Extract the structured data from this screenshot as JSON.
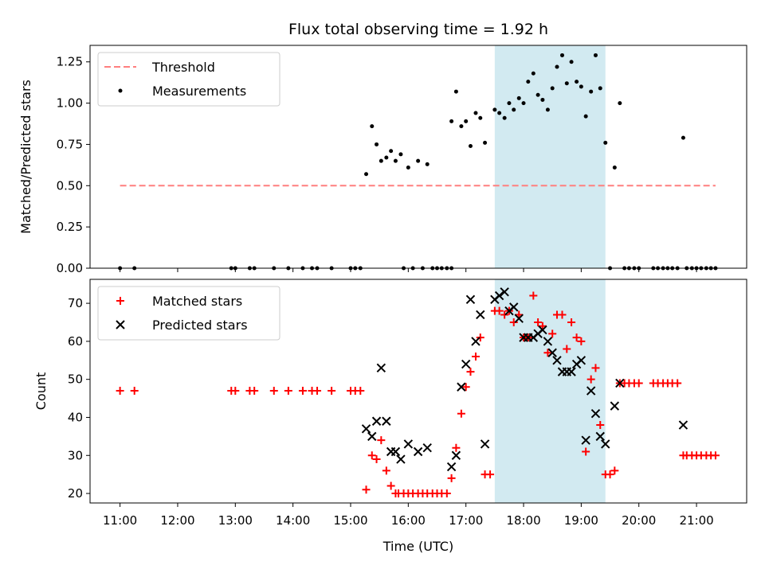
{
  "chart_data": [
    {
      "type": "scatter",
      "title": "Flux total observing time = 1.92 h",
      "ylabel": "Matched/Predicted stars",
      "xlabel": "",
      "x_unit": "hours UTC",
      "xlim": [
        10.48,
        21.87
      ],
      "ylim": [
        0.0,
        1.35
      ],
      "yticks": [
        0.0,
        0.25,
        0.5,
        0.75,
        1.0,
        1.25
      ],
      "ytick_labels": [
        "0.00",
        "0.25",
        "0.50",
        "0.75",
        "1.00",
        "1.25"
      ],
      "highlight_span": {
        "x": [
          17.5,
          19.42
        ],
        "color": "#add8e6"
      },
      "legend_position": "top-left",
      "legend": [
        {
          "label": "Threshold",
          "style": "dashed-line",
          "color": "#ff7f7f"
        },
        {
          "label": "Measurements",
          "style": "dot",
          "color": "#000000"
        }
      ],
      "series": [
        {
          "name": "Threshold",
          "kind": "line",
          "color": "#ff7f7f",
          "x": [
            11.0,
            21.33
          ],
          "y": [
            0.5,
            0.5
          ]
        },
        {
          "name": "Measurements",
          "kind": "dot",
          "color": "#000000",
          "points": [
            [
              11.0,
              0.0
            ],
            [
              11.25,
              0.0
            ],
            [
              12.93,
              0.0
            ],
            [
              13.0,
              0.0
            ],
            [
              13.25,
              0.0
            ],
            [
              13.33,
              0.0
            ],
            [
              13.67,
              0.0
            ],
            [
              13.92,
              0.0
            ],
            [
              14.17,
              0.0
            ],
            [
              14.33,
              0.0
            ],
            [
              14.42,
              0.0
            ],
            [
              14.67,
              0.0
            ],
            [
              15.0,
              0.0
            ],
            [
              15.08,
              0.0
            ],
            [
              15.17,
              0.0
            ],
            [
              15.27,
              0.57
            ],
            [
              15.37,
              0.86
            ],
            [
              15.45,
              0.75
            ],
            [
              15.53,
              0.65
            ],
            [
              15.62,
              0.67
            ],
            [
              15.7,
              0.71
            ],
            [
              15.78,
              0.65
            ],
            [
              15.87,
              0.69
            ],
            [
              16.0,
              0.61
            ],
            [
              16.17,
              0.65
            ],
            [
              16.33,
              0.63
            ],
            [
              15.92,
              0.0
            ],
            [
              16.08,
              0.0
            ],
            [
              16.25,
              0.0
            ],
            [
              16.42,
              0.0
            ],
            [
              16.5,
              0.0
            ],
            [
              16.58,
              0.0
            ],
            [
              16.67,
              0.0
            ],
            [
              16.75,
              0.0
            ],
            [
              16.75,
              0.89
            ],
            [
              16.83,
              1.07
            ],
            [
              16.92,
              0.86
            ],
            [
              17.0,
              0.89
            ],
            [
              17.08,
              0.74
            ],
            [
              17.17,
              0.94
            ],
            [
              17.25,
              0.91
            ],
            [
              17.33,
              0.76
            ],
            [
              17.5,
              0.96
            ],
            [
              17.58,
              0.94
            ],
            [
              17.67,
              0.91
            ],
            [
              17.75,
              1.0
            ],
            [
              17.83,
              0.96
            ],
            [
              17.92,
              1.03
            ],
            [
              18.0,
              1.0
            ],
            [
              18.08,
              1.13
            ],
            [
              18.17,
              1.18
            ],
            [
              18.25,
              1.05
            ],
            [
              18.33,
              1.02
            ],
            [
              18.42,
              0.96
            ],
            [
              18.5,
              1.09
            ],
            [
              18.58,
              1.22
            ],
            [
              18.67,
              1.29
            ],
            [
              18.75,
              1.12
            ],
            [
              18.83,
              1.25
            ],
            [
              18.92,
              1.13
            ],
            [
              19.0,
              1.1
            ],
            [
              19.08,
              0.92
            ],
            [
              19.17,
              1.07
            ],
            [
              19.25,
              1.29
            ],
            [
              19.33,
              1.09
            ],
            [
              19.42,
              0.76
            ],
            [
              19.58,
              0.61
            ],
            [
              19.67,
              1.0
            ],
            [
              19.5,
              0.0
            ],
            [
              19.75,
              0.0
            ],
            [
              19.83,
              0.0
            ],
            [
              19.92,
              0.0
            ],
            [
              20.0,
              0.0
            ],
            [
              20.25,
              0.0
            ],
            [
              20.33,
              0.0
            ],
            [
              20.42,
              0.0
            ],
            [
              20.5,
              0.0
            ],
            [
              20.58,
              0.0
            ],
            [
              20.67,
              0.0
            ],
            [
              20.77,
              0.79
            ],
            [
              20.83,
              0.0
            ],
            [
              20.92,
              0.0
            ],
            [
              21.0,
              0.0
            ],
            [
              21.08,
              0.0
            ],
            [
              21.17,
              0.0
            ],
            [
              21.25,
              0.0
            ],
            [
              21.33,
              0.0
            ]
          ]
        }
      ]
    },
    {
      "type": "scatter",
      "title": "",
      "ylabel": "Count",
      "xlabel": "Time (UTC)",
      "x_unit": "hours UTC",
      "xlim": [
        10.48,
        21.87
      ],
      "ylim": [
        17.5,
        76.3
      ],
      "yticks": [
        20,
        30,
        40,
        50,
        60,
        70
      ],
      "ytick_labels": [
        "20",
        "30",
        "40",
        "50",
        "60",
        "70"
      ],
      "xticks": [
        11,
        12,
        13,
        14,
        15,
        16,
        17,
        18,
        19,
        20,
        21
      ],
      "xtick_labels": [
        "11:00",
        "12:00",
        "13:00",
        "14:00",
        "15:00",
        "16:00",
        "17:00",
        "18:00",
        "19:00",
        "20:00",
        "21:00"
      ],
      "highlight_span": {
        "x": [
          17.5,
          19.42
        ],
        "color": "#add8e6"
      },
      "legend_position": "top-left",
      "legend": [
        {
          "label": "Matched stars",
          "style": "plus",
          "color": "#ff0000"
        },
        {
          "label": "Predicted stars",
          "style": "x",
          "color": "#000000"
        }
      ],
      "series": [
        {
          "name": "Matched stars",
          "kind": "plus",
          "color": "#ff0000",
          "points": [
            [
              11.0,
              47
            ],
            [
              11.25,
              47
            ],
            [
              12.93,
              47
            ],
            [
              13.0,
              47
            ],
            [
              13.25,
              47
            ],
            [
              13.33,
              47
            ],
            [
              13.67,
              47
            ],
            [
              13.92,
              47
            ],
            [
              14.17,
              47
            ],
            [
              14.33,
              47
            ],
            [
              14.42,
              47
            ],
            [
              14.67,
              47
            ],
            [
              15.0,
              47
            ],
            [
              15.08,
              47
            ],
            [
              15.17,
              47
            ],
            [
              15.27,
              21
            ],
            [
              15.37,
              30
            ],
            [
              15.45,
              29
            ],
            [
              15.53,
              34
            ],
            [
              15.62,
              26
            ],
            [
              15.7,
              22
            ],
            [
              15.78,
              20
            ],
            [
              15.83,
              20
            ],
            [
              15.92,
              20
            ],
            [
              16.0,
              20
            ],
            [
              16.08,
              20
            ],
            [
              16.17,
              20
            ],
            [
              16.25,
              20
            ],
            [
              16.33,
              20
            ],
            [
              16.42,
              20
            ],
            [
              16.5,
              20
            ],
            [
              16.58,
              20
            ],
            [
              16.67,
              20
            ],
            [
              16.75,
              24
            ],
            [
              16.83,
              32
            ],
            [
              16.92,
              41
            ],
            [
              17.0,
              48
            ],
            [
              17.08,
              52
            ],
            [
              17.17,
              56
            ],
            [
              17.25,
              61
            ],
            [
              17.33,
              25
            ],
            [
              17.42,
              25
            ],
            [
              17.5,
              68
            ],
            [
              17.58,
              68
            ],
            [
              17.67,
              67
            ],
            [
              17.75,
              68
            ],
            [
              17.83,
              65
            ],
            [
              17.92,
              67
            ],
            [
              18.0,
              61
            ],
            [
              18.08,
              61
            ],
            [
              18.17,
              72
            ],
            [
              18.25,
              65
            ],
            [
              18.33,
              64
            ],
            [
              18.42,
              57
            ],
            [
              18.5,
              62
            ],
            [
              18.58,
              67
            ],
            [
              18.67,
              67
            ],
            [
              18.75,
              58
            ],
            [
              18.83,
              65
            ],
            [
              18.92,
              61
            ],
            [
              19.0,
              60
            ],
            [
              19.08,
              31
            ],
            [
              19.17,
              50
            ],
            [
              19.25,
              53
            ],
            [
              19.33,
              38
            ],
            [
              19.42,
              25
            ],
            [
              19.5,
              25
            ],
            [
              19.58,
              26
            ],
            [
              19.67,
              49
            ],
            [
              19.75,
              49
            ],
            [
              19.83,
              49
            ],
            [
              19.92,
              49
            ],
            [
              20.0,
              49
            ],
            [
              20.25,
              49
            ],
            [
              20.33,
              49
            ],
            [
              20.42,
              49
            ],
            [
              20.5,
              49
            ],
            [
              20.58,
              49
            ],
            [
              20.67,
              49
            ],
            [
              20.77,
              30
            ],
            [
              20.83,
              30
            ],
            [
              20.92,
              30
            ],
            [
              21.0,
              30
            ],
            [
              21.08,
              30
            ],
            [
              21.17,
              30
            ],
            [
              21.25,
              30
            ],
            [
              21.33,
              30
            ]
          ]
        },
        {
          "name": "Predicted stars",
          "kind": "x",
          "color": "#000000",
          "points": [
            [
              15.27,
              37
            ],
            [
              15.37,
              35
            ],
            [
              15.45,
              39
            ],
            [
              15.53,
              53
            ],
            [
              15.62,
              39
            ],
            [
              15.7,
              31
            ],
            [
              15.78,
              31
            ],
            [
              15.87,
              29
            ],
            [
              16.0,
              33
            ],
            [
              16.17,
              31
            ],
            [
              16.33,
              32
            ],
            [
              16.75,
              27
            ],
            [
              16.83,
              30
            ],
            [
              16.92,
              48
            ],
            [
              17.0,
              54
            ],
            [
              17.08,
              71
            ],
            [
              17.17,
              60
            ],
            [
              17.25,
              67
            ],
            [
              17.33,
              33
            ],
            [
              17.5,
              71
            ],
            [
              17.58,
              72
            ],
            [
              17.67,
              73
            ],
            [
              17.75,
              68
            ],
            [
              17.83,
              69
            ],
            [
              17.92,
              66
            ],
            [
              18.0,
              61
            ],
            [
              18.08,
              61
            ],
            [
              18.17,
              61
            ],
            [
              18.25,
              62
            ],
            [
              18.33,
              63
            ],
            [
              18.42,
              60
            ],
            [
              18.5,
              57
            ],
            [
              18.58,
              55
            ],
            [
              18.67,
              52
            ],
            [
              18.75,
              52
            ],
            [
              18.83,
              52
            ],
            [
              18.92,
              54
            ],
            [
              19.0,
              55
            ],
            [
              19.08,
              34
            ],
            [
              19.17,
              47
            ],
            [
              19.25,
              41
            ],
            [
              19.33,
              35
            ],
            [
              19.42,
              33
            ],
            [
              19.58,
              43
            ],
            [
              19.67,
              49
            ],
            [
              20.77,
              38
            ]
          ]
        }
      ]
    }
  ]
}
